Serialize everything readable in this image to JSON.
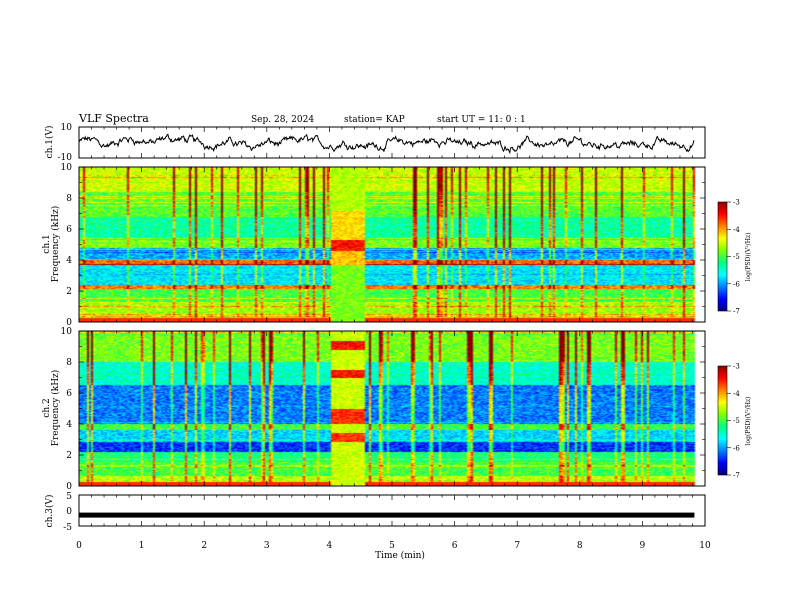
{
  "header": {
    "title": "VLF Spectra",
    "date": "Sep. 28, 2024",
    "station": "station= KAP",
    "start_ut": "start  UT =   11: 0  : 1"
  },
  "colors": {
    "scale": [
      "#00007a",
      "#0000ff",
      "#0080ff",
      "#00ffff",
      "#00ff80",
      "#80ff00",
      "#ffff00",
      "#ff8000",
      "#ff0000",
      "#8b0000"
    ],
    "trace": "#000000",
    "axis": "#000000",
    "background": "#ffffff"
  },
  "chart_data": [
    {
      "type": "line",
      "name": "ch1-waveform",
      "ylabel": "ch.1(V)",
      "ylim": [
        -10,
        10
      ],
      "yticks": [
        "10",
        "-10"
      ],
      "xlim": [
        0,
        10
      ],
      "x_end": 9.83,
      "description_values": "noisy waveform fluctuating roughly between -5 and 5 V"
    },
    {
      "type": "heatmap",
      "name": "ch1-spectrogram",
      "ylabel": "ch.1\nFrequency (kHz)",
      "ylim": [
        0,
        10
      ],
      "yticks": [
        "0",
        "2",
        "4",
        "6",
        "8",
        "10"
      ],
      "xlim": [
        0,
        10
      ],
      "x_end": 9.83,
      "burst_interval": [
        4.03,
        4.58
      ],
      "colorbar": {
        "label": "log(PSD)(V²/Hz)",
        "range": [
          -7,
          -3
        ],
        "ticks": [
          "-3",
          "-4",
          "-5",
          "-6",
          "-7"
        ]
      }
    },
    {
      "type": "heatmap",
      "name": "ch2-spectrogram",
      "ylabel": "ch.2\nFrequency (kHz)",
      "ylim": [
        0,
        10
      ],
      "yticks": [
        "0",
        "2",
        "4",
        "6",
        "8",
        "10"
      ],
      "xlim": [
        0,
        10
      ],
      "x_end": 9.83,
      "burst_interval": [
        4.03,
        4.58
      ],
      "colorbar": {
        "label": "log(PSD)(V²/Hz)",
        "range": [
          -7,
          -3
        ],
        "ticks": [
          "-3",
          "-4",
          "-5",
          "-6",
          "-7"
        ]
      }
    },
    {
      "type": "line",
      "name": "ch3-signal",
      "ylabel": "ch.3(V)",
      "ylim": [
        -5,
        5
      ],
      "yticks": [
        "5",
        "0",
        "-5"
      ],
      "xlim": [
        0,
        10
      ],
      "x_end": 9.83,
      "value": -1.5,
      "xlabel": "Time (min)",
      "xticks": [
        "0",
        "1",
        "2",
        "3",
        "4",
        "5",
        "6",
        "7",
        "8",
        "9",
        "10"
      ]
    }
  ]
}
